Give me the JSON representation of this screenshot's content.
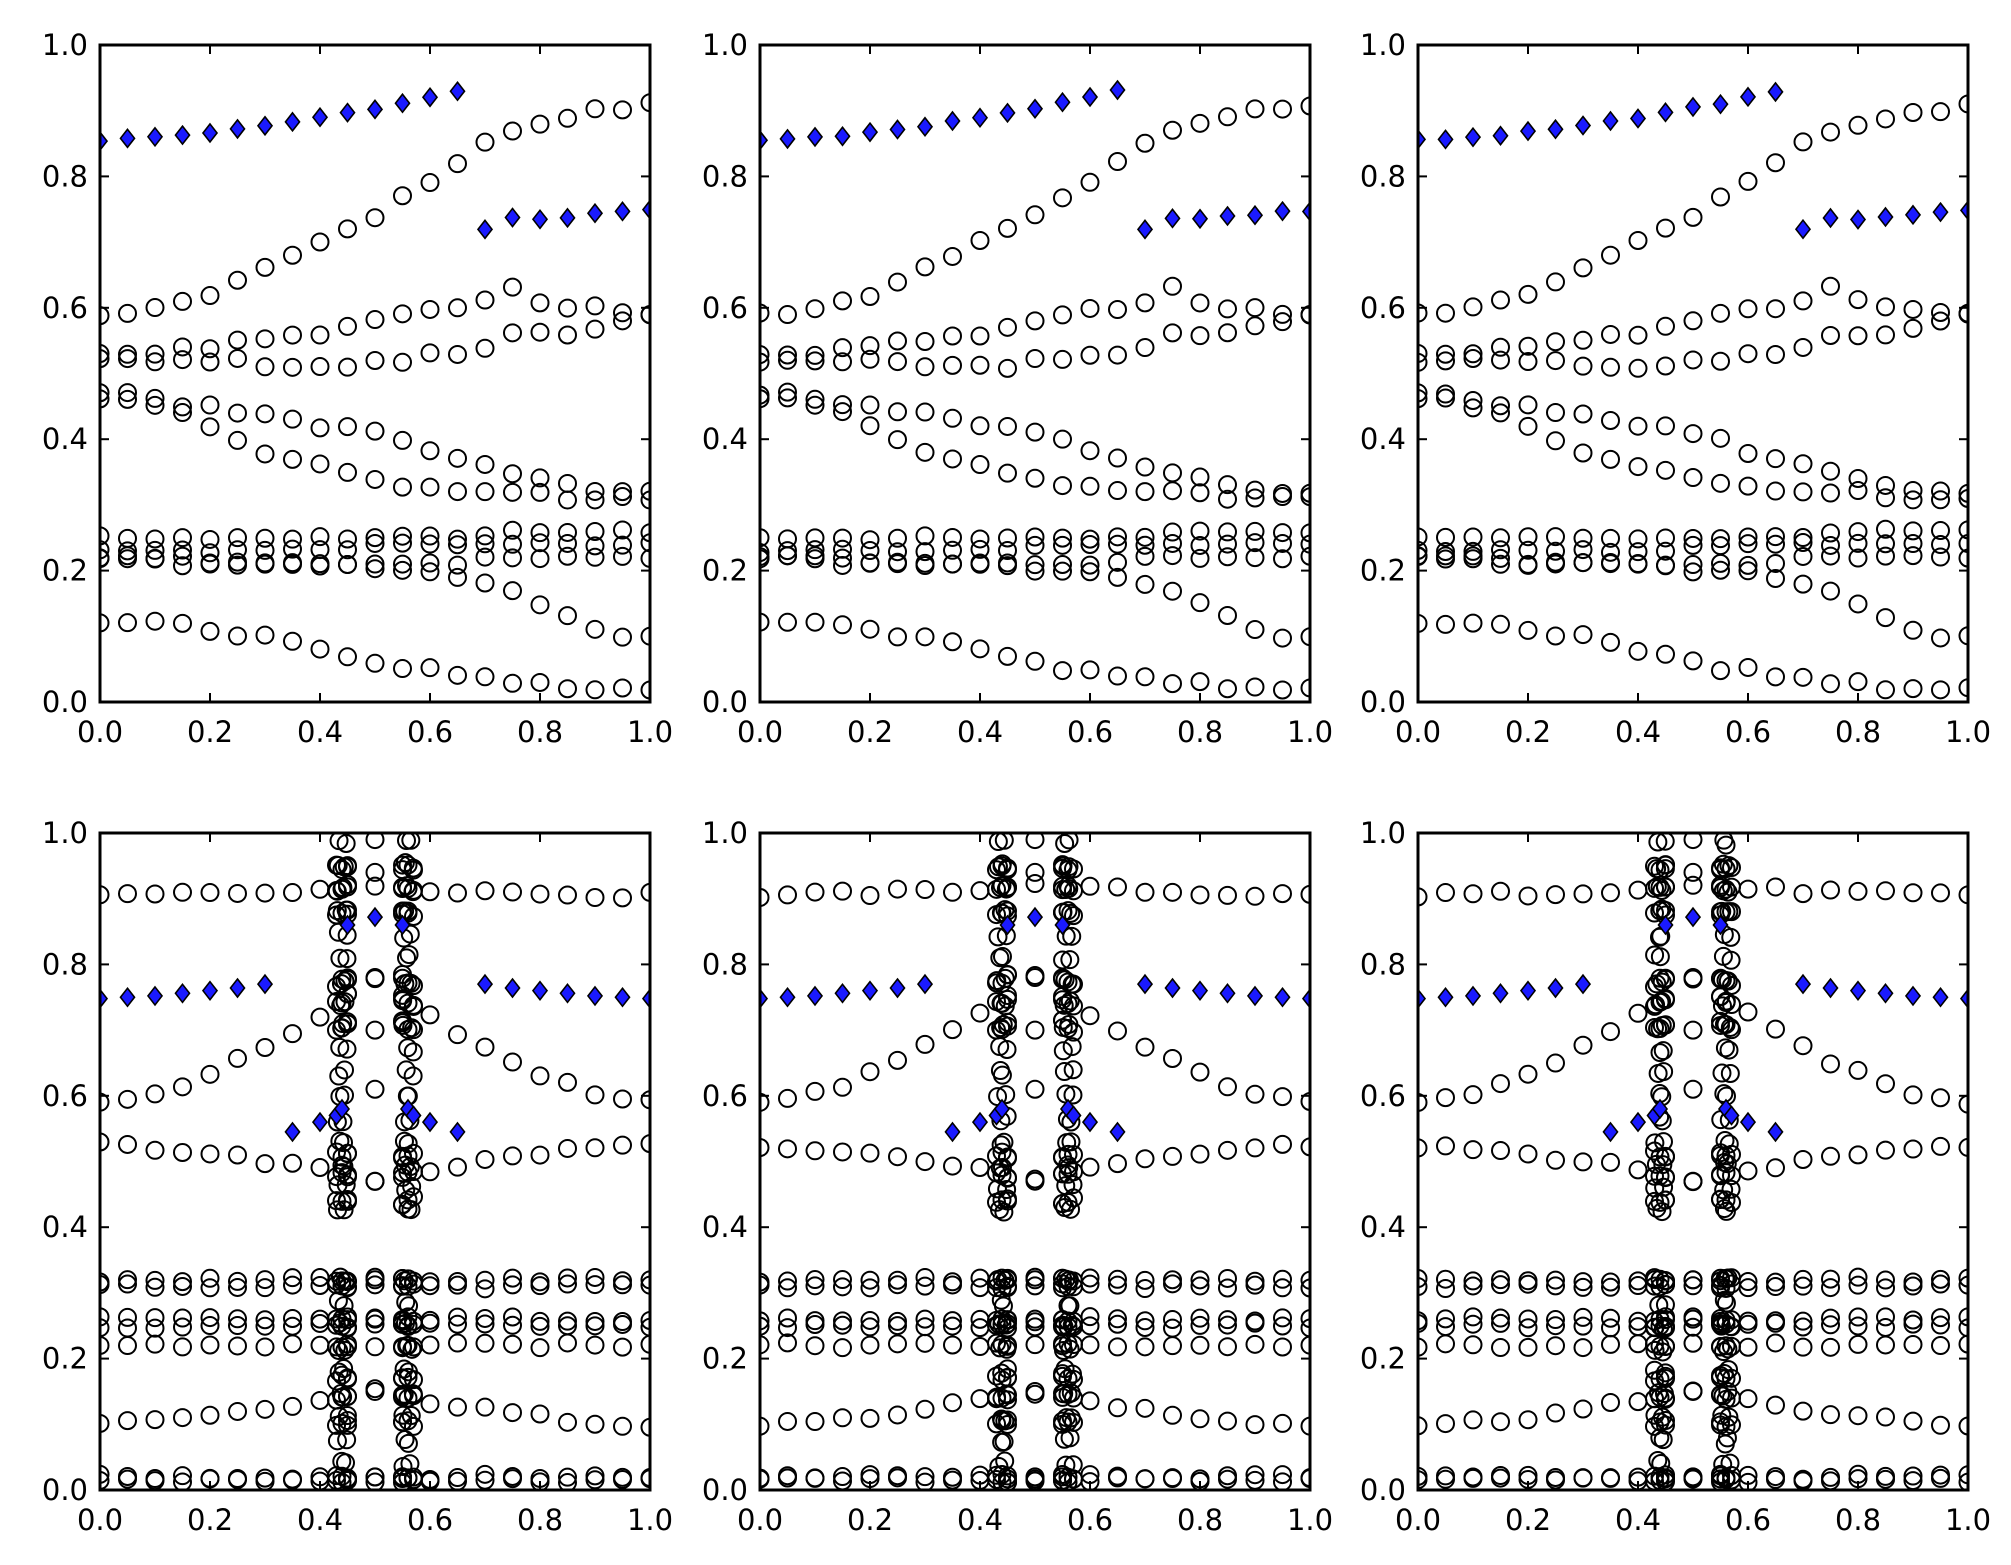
{
  "figure": {
    "layout": "2x3 grid of scatter panels"
  },
  "marker_colors": {
    "circle_face": "none",
    "circle_edge": "#000000",
    "diamond_face": "#1a1aff",
    "diamond_edge": "#000000"
  },
  "chart_data": [
    {
      "panel": "top-1",
      "type": "scatter",
      "xlim": [
        0,
        1
      ],
      "ylim": [
        0,
        1
      ],
      "xticks": [
        "0.0",
        "0.2",
        "0.4",
        "0.6",
        "0.8",
        "1.0"
      ],
      "yticks": [
        "0.0",
        "0.2",
        "0.4",
        "0.6",
        "0.8",
        "1.0"
      ],
      "generator": "top",
      "circle_series": "open-circles",
      "diamond_series": "filled-diamonds"
    },
    {
      "panel": "top-2",
      "type": "scatter",
      "xlim": [
        0,
        1
      ],
      "ylim": [
        0,
        1
      ],
      "xticks": [
        "0.0",
        "0.2",
        "0.4",
        "0.6",
        "0.8",
        "1.0"
      ],
      "yticks": [
        "0.0",
        "0.2",
        "0.4",
        "0.6",
        "0.8",
        "1.0"
      ],
      "generator": "top"
    },
    {
      "panel": "top-3",
      "type": "scatter",
      "xlim": [
        0,
        1
      ],
      "ylim": [
        0,
        1
      ],
      "xticks": [
        "0.0",
        "0.2",
        "0.4",
        "0.6",
        "0.8",
        "1.0"
      ],
      "yticks": [
        "0.0",
        "0.2",
        "0.4",
        "0.6",
        "0.8",
        "1.0"
      ],
      "generator": "top"
    },
    {
      "panel": "bottom-1",
      "type": "scatter",
      "xlim": [
        0,
        1
      ],
      "ylim": [
        0,
        1
      ],
      "xticks": [
        "0.0",
        "0.2",
        "0.4",
        "0.6",
        "0.8",
        "1.0"
      ],
      "yticks": [
        "0.0",
        "0.2",
        "0.4",
        "0.6",
        "0.8",
        "1.0"
      ],
      "generator": "bottom"
    },
    {
      "panel": "bottom-2",
      "type": "scatter",
      "xlim": [
        0,
        1
      ],
      "ylim": [
        0,
        1
      ],
      "xticks": [
        "0.0",
        "0.2",
        "0.4",
        "0.6",
        "0.8",
        "1.0"
      ],
      "yticks": [
        "0.0",
        "0.2",
        "0.4",
        "0.6",
        "0.8",
        "1.0"
      ],
      "generator": "bottom"
    },
    {
      "panel": "bottom-3",
      "type": "scatter",
      "xlim": [
        0,
        1
      ],
      "ylim": [
        0,
        1
      ],
      "xticks": [
        "0.0",
        "0.2",
        "0.4",
        "0.6",
        "0.8",
        "1.0"
      ],
      "yticks": [
        "0.0",
        "0.2",
        "0.4",
        "0.6",
        "0.8",
        "1.0"
      ],
      "generator": "bottom"
    }
  ],
  "top_series": {
    "x": [
      0.0,
      0.05,
      0.1,
      0.15,
      0.2,
      0.25,
      0.3,
      0.35,
      0.4,
      0.45,
      0.5,
      0.55,
      0.6,
      0.65,
      0.7,
      0.75,
      0.8,
      0.85,
      0.9,
      0.95,
      1.0
    ],
    "circle_bands": [
      [
        0.59,
        0.59,
        0.6,
        0.61,
        0.62,
        0.64,
        0.66,
        0.68,
        0.7,
        0.72,
        0.74,
        0.77,
        0.79,
        0.82,
        0.85,
        0.87,
        0.88,
        0.89,
        0.9,
        0.9,
        0.91
      ],
      [
        0.53,
        0.53,
        0.53,
        0.54,
        0.54,
        0.55,
        0.55,
        0.56,
        0.56,
        0.57,
        0.58,
        0.59,
        0.6,
        0.6,
        0.61,
        0.63,
        0.61,
        0.6,
        0.6,
        0.59,
        0.59
      ],
      [
        0.52,
        0.52,
        0.52,
        0.52,
        0.52,
        0.52,
        0.51,
        0.51,
        0.51,
        0.51,
        0.52,
        0.52,
        0.53,
        0.53,
        0.54,
        0.56,
        0.56,
        0.56,
        0.57,
        0.58,
        0.59
      ],
      [
        0.47,
        0.47,
        0.46,
        0.45,
        0.45,
        0.44,
        0.44,
        0.43,
        0.42,
        0.42,
        0.41,
        0.4,
        0.38,
        0.37,
        0.36,
        0.35,
        0.34,
        0.33,
        0.32,
        0.32,
        0.32
      ],
      [
        0.46,
        0.46,
        0.45,
        0.44,
        0.42,
        0.4,
        0.38,
        0.37,
        0.36,
        0.35,
        0.34,
        0.33,
        0.33,
        0.32,
        0.32,
        0.32,
        0.32,
        0.31,
        0.31,
        0.31,
        0.31
      ],
      [
        0.25,
        0.25,
        0.25,
        0.25,
        0.25,
        0.25,
        0.25,
        0.25,
        0.25,
        0.25,
        0.25,
        0.25,
        0.25,
        0.25,
        0.25,
        0.26,
        0.26,
        0.26,
        0.26,
        0.26,
        0.26
      ],
      [
        0.23,
        0.23,
        0.23,
        0.23,
        0.23,
        0.23,
        0.23,
        0.23,
        0.23,
        0.23,
        0.24,
        0.24,
        0.24,
        0.24,
        0.24,
        0.24,
        0.24,
        0.24,
        0.24,
        0.24,
        0.24
      ],
      [
        0.22,
        0.22,
        0.22,
        0.22,
        0.21,
        0.21,
        0.21,
        0.21,
        0.21,
        0.21,
        0.21,
        0.21,
        0.21,
        0.21,
        0.22,
        0.22,
        0.22,
        0.22,
        0.22,
        0.22,
        0.22
      ],
      [
        0.22,
        0.22,
        0.22,
        0.21,
        0.21,
        0.21,
        0.21,
        0.21,
        0.21,
        0.21,
        0.2,
        0.2,
        0.2,
        0.19,
        0.18,
        0.17,
        0.15,
        0.13,
        0.11,
        0.1,
        0.1
      ],
      [
        0.12,
        0.12,
        0.12,
        0.12,
        0.11,
        0.1,
        0.1,
        0.09,
        0.08,
        0.07,
        0.06,
        0.05,
        0.05,
        0.04,
        0.04,
        0.03,
        0.03,
        0.02,
        0.02,
        0.02,
        0.02
      ]
    ],
    "diamonds": {
      "x": [
        0.0,
        0.05,
        0.1,
        0.15,
        0.2,
        0.25,
        0.3,
        0.35,
        0.4,
        0.45,
        0.5,
        0.55,
        0.6,
        0.65,
        0.7,
        0.75,
        0.8,
        0.85,
        0.9,
        0.95,
        1.0
      ],
      "y": [
        0.855,
        0.857,
        0.86,
        0.863,
        0.867,
        0.871,
        0.876,
        0.883,
        0.89,
        0.897,
        0.904,
        0.911,
        0.92,
        0.93,
        0.718,
        0.738,
        0.735,
        0.738,
        0.742,
        0.746,
        0.748
      ]
    }
  },
  "bottom_series": {
    "flat_levels": [
      0.32,
      0.31,
      0.26,
      0.25,
      0.22,
      0.02,
      0.015
    ],
    "bands": [
      {
        "base": 0.905,
        "peak_center": 0.92,
        "shape": "up"
      },
      {
        "base": 0.59,
        "peak_center": 0.78,
        "shape": "up"
      },
      {
        "base": 0.525,
        "peak_center": 0.47,
        "shape": "down"
      },
      {
        "base": 0.1,
        "peak_center": 0.15,
        "shape": "up"
      }
    ],
    "diamonds": {
      "x": [
        0.0,
        0.05,
        0.1,
        0.15,
        0.2,
        0.25,
        0.3,
        0.35,
        0.4,
        0.43,
        0.44,
        0.45,
        0.5,
        0.55,
        0.56,
        0.57,
        0.6,
        0.65,
        0.7,
        0.75,
        0.8,
        0.85,
        0.9,
        0.95,
        1.0
      ],
      "y": [
        0.748,
        0.75,
        0.752,
        0.756,
        0.76,
        0.764,
        0.77,
        0.545,
        0.56,
        0.57,
        0.58,
        0.86,
        0.872,
        0.86,
        0.58,
        0.57,
        0.56,
        0.545,
        0.77,
        0.764,
        0.76,
        0.756,
        0.752,
        0.75,
        0.748
      ]
    }
  }
}
